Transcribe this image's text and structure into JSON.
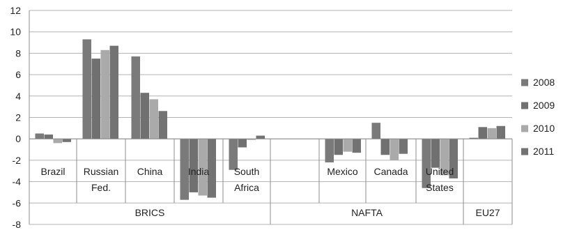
{
  "chart_data": {
    "type": "bar",
    "title": "",
    "xlabel": "",
    "ylabel": "",
    "ylim": [
      -8,
      12
    ],
    "yticks": [
      "12",
      "10",
      "8",
      "6",
      "4",
      "2",
      "0",
      "-2",
      "-4",
      "-6",
      "-8"
    ],
    "grid": true,
    "legend_position": "right",
    "categories": [
      "Brazil",
      "Russian Fed.",
      "China",
      "India",
      "South Africa",
      "",
      "Mexico",
      "Canada",
      "United States",
      "EU27"
    ],
    "category_labels": [
      [
        "Brazil"
      ],
      [
        "Russian",
        "Fed."
      ],
      [
        "China"
      ],
      [
        "India"
      ],
      [
        "South",
        "Africa"
      ],
      [
        ""
      ],
      [
        "Mexico"
      ],
      [
        "Canada"
      ],
      [
        "United",
        "States"
      ],
      [
        ""
      ]
    ],
    "groups": [
      {
        "label": "BRICS"
      },
      {
        "label": "NAFTA"
      },
      {
        "label": "EU27"
      }
    ],
    "series": [
      {
        "name": "2008",
        "color": "#7a7a7a",
        "values": [
          0.5,
          9.3,
          7.7,
          -5.7,
          -2.9,
          null,
          -2.2,
          1.5,
          -4.6,
          0.1
        ]
      },
      {
        "name": "2009",
        "color": "#707070",
        "values": [
          0.4,
          7.5,
          4.3,
          -5.0,
          -0.8,
          null,
          -1.5,
          -1.5,
          -2.7,
          1.1
        ]
      },
      {
        "name": "2010",
        "color": "#aaaaaa",
        "values": [
          -0.4,
          8.3,
          3.7,
          -5.3,
          -0.1,
          null,
          -1.2,
          -2.0,
          -3.4,
          1.0
        ]
      },
      {
        "name": "2011",
        "color": "#737373",
        "values": [
          -0.3,
          8.7,
          2.6,
          -5.5,
          0.3,
          null,
          -1.3,
          -1.4,
          -3.7,
          1.2
        ]
      }
    ]
  }
}
